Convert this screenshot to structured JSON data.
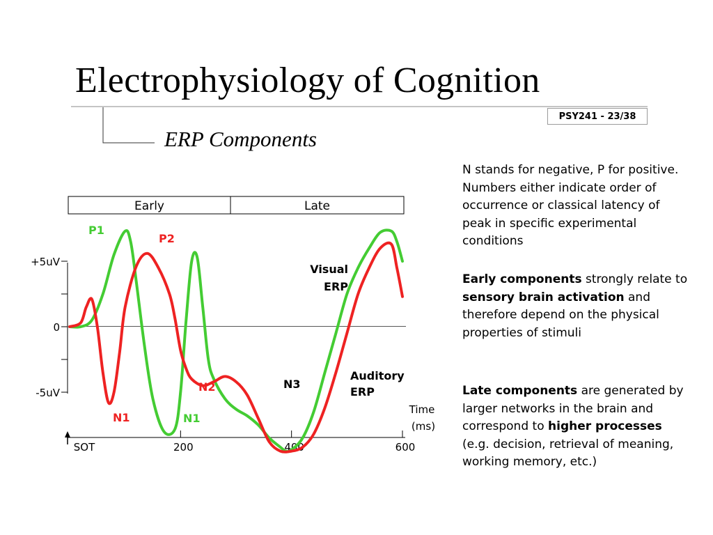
{
  "slide": {
    "title": "Electrophysiology of Cognition",
    "subtitle": "ERP Components",
    "badge": "PSY241 - 23/38"
  },
  "notes": {
    "p1": "N stands for negative, P for positive. Numbers either indicate order of occurrence or classical latency of peak in specific experimental conditions",
    "p2": [
      {
        "text": "Early components",
        "bold": true
      },
      {
        "text": " strongly relate to ",
        "bold": false
      },
      {
        "text": "sensory brain activation",
        "bold": true
      },
      {
        "text": " and therefore depend on the physical properties of stimuli",
        "bold": false
      }
    ],
    "p3": [
      {
        "text": "Late components",
        "bold": true
      },
      {
        "text": " are generated by larger networks in the brain and correspond to ",
        "bold": false
      },
      {
        "text": "higher processes",
        "bold": true
      },
      {
        "text": " (e.g. decision, retrieval of meaning, working memory, etc.)",
        "bold": false
      }
    ]
  },
  "chart_data": {
    "type": "line",
    "phases": [
      {
        "label": "Early",
        "x_start": 0,
        "x_end": 290
      },
      {
        "label": "Late",
        "x_start": 290,
        "x_end": 600
      }
    ],
    "x_ticks": [
      {
        "value": 0,
        "label": "SOT"
      },
      {
        "value": 200,
        "label": "200"
      },
      {
        "value": 400,
        "label": "400"
      },
      {
        "value": 600,
        "label": "600"
      }
    ],
    "y_ticks": [
      {
        "value": 5,
        "label": "+5uV"
      },
      {
        "value": 2.5,
        "label": ""
      },
      {
        "value": 0,
        "label": "0"
      },
      {
        "value": -2.5,
        "label": ""
      },
      {
        "value": -5,
        "label": "-5uV"
      }
    ],
    "xlabel": [
      "Time",
      "(ms)"
    ],
    "xlim": [
      0,
      600
    ],
    "ylim": [
      -8,
      7.5
    ],
    "series": [
      {
        "name": "Visual ERP",
        "label_lines": [
          "Visual",
          "ERP"
        ],
        "color": "#44cc33",
        "x": [
          0,
          20,
          40,
          60,
          80,
          100,
          110,
          120,
          135,
          150,
          170,
          190,
          200,
          210,
          220,
          230,
          240,
          250,
          260,
          280,
          300,
          320,
          340,
          360,
          380,
          390,
          400,
          420,
          440,
          460,
          480,
          500,
          520,
          540,
          560,
          580,
          590,
          600
        ],
        "y": [
          0,
          0,
          0.5,
          2.5,
          5.5,
          7.3,
          6.5,
          3.5,
          -1.5,
          -5.5,
          -8,
          -7.8,
          -5,
          0.5,
          5,
          5.3,
          1.5,
          -2.5,
          -4,
          -5.5,
          -6.3,
          -6.8,
          -7.5,
          -8.5,
          -9.2,
          -9.5,
          -9.4,
          -8.5,
          -6.5,
          -3.5,
          -0.5,
          2.5,
          4.5,
          6,
          7.2,
          7.3,
          6.5,
          5
        ]
      },
      {
        "name": "Auditory ERP",
        "label_lines": [
          "Auditory",
          "ERP"
        ],
        "color": "#ee2222",
        "x": [
          0,
          20,
          30,
          40,
          50,
          60,
          70,
          80,
          90,
          100,
          120,
          140,
          160,
          180,
          190,
          200,
          210,
          220,
          240,
          260,
          280,
          300,
          320,
          340,
          360,
          380,
          400,
          420,
          440,
          460,
          480,
          500,
          520,
          540,
          560,
          580,
          590,
          600
        ],
        "y": [
          0,
          0.3,
          1.5,
          2.1,
          0,
          -3.5,
          -5.8,
          -5,
          -2,
          1.5,
          4.6,
          5.6,
          4.5,
          2.5,
          0.6,
          -1.8,
          -3.2,
          -4,
          -4.5,
          -4.2,
          -3.8,
          -4.2,
          -5.2,
          -7,
          -8.8,
          -9.5,
          -9.5,
          -9.2,
          -8.2,
          -6.2,
          -3.5,
          -0.5,
          2.5,
          4.5,
          6,
          6.3,
          4.5,
          2.3
        ]
      }
    ],
    "annotations": [
      {
        "text": "P1",
        "color": "#44cc33"
      },
      {
        "text": "P2",
        "color": "#ee2222"
      },
      {
        "text": "N1",
        "color": "#ee2222"
      },
      {
        "text": "N1",
        "color": "#44cc33"
      },
      {
        "text": "N2",
        "color": "#ee2222"
      },
      {
        "text": "N3",
        "color": "#000000"
      }
    ]
  }
}
